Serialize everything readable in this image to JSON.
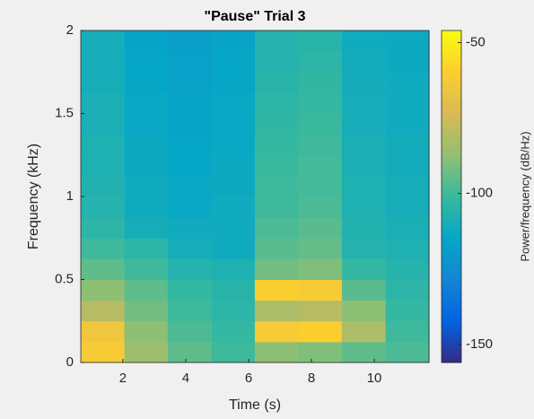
{
  "chart_data": {
    "type": "heatmap",
    "title": "\"Pause\" Trial 3",
    "x_label": "Time (s)",
    "y_label": "Frequency (kHz)",
    "colorbar_label": "Power/frequency (dB/Hz)",
    "x": [
      1.35,
      2.74,
      4.12,
      5.51,
      6.89,
      8.28,
      9.66,
      11.05
    ],
    "y": [
      0.0625,
      0.1875,
      0.3125,
      0.4375,
      0.5625,
      0.6875,
      0.8125,
      0.9375,
      1.0625,
      1.1875,
      1.3125,
      1.4375,
      1.5625,
      1.6875,
      1.8125,
      1.9375
    ],
    "z": [
      [
        -62,
        -85,
        -95,
        -100,
        -88,
        -90,
        -95,
        -98
      ],
      [
        -65,
        -88,
        -98,
        -102,
        -62,
        -60,
        -82,
        -100
      ],
      [
        -80,
        -92,
        -100,
        -104,
        -82,
        -80,
        -88,
        -102
      ],
      [
        -88,
        -95,
        -102,
        -105,
        -60,
        -62,
        -96,
        -104
      ],
      [
        -95,
        -100,
        -106,
        -108,
        -92,
        -90,
        -102,
        -106
      ],
      [
        -100,
        -104,
        -110,
        -112,
        -96,
        -94,
        -106,
        -108
      ],
      [
        -104,
        -110,
        -112,
        -112,
        -98,
        -96,
        -107,
        -109
      ],
      [
        -106,
        -112,
        -114,
        -112,
        -100,
        -98,
        -108,
        -110
      ],
      [
        -107,
        -112,
        -114,
        -113,
        -100,
        -99,
        -108,
        -110
      ],
      [
        -108,
        -113,
        -115,
        -113,
        -101,
        -99,
        -109,
        -111
      ],
      [
        -108,
        -113,
        -115,
        -114,
        -102,
        -100,
        -109,
        -111
      ],
      [
        -109,
        -114,
        -116,
        -114,
        -103,
        -101,
        -110,
        -112
      ],
      [
        -109,
        -114,
        -116,
        -114,
        -104,
        -102,
        -110,
        -112
      ],
      [
        -110,
        -115,
        -117,
        -115,
        -105,
        -103,
        -111,
        -112
      ],
      [
        -110,
        -115,
        -117,
        -115,
        -106,
        -104,
        -111,
        -113
      ],
      [
        -110,
        -116,
        -118,
        -116,
        -106,
        -105,
        -112,
        -113
      ]
    ],
    "xlim": [
      0.66,
      11.74
    ],
    "ylim": [
      0,
      2
    ],
    "xticks": [
      2,
      4,
      6,
      8,
      10
    ],
    "yticks": [
      0,
      0.5,
      1,
      1.5,
      2
    ],
    "clim": [
      -156,
      -46
    ],
    "cticks": [
      -150,
      -100,
      -50
    ],
    "colormap": [
      "#352a87",
      "#0363e1",
      "#1485d4",
      "#06a7c6",
      "#38b99e",
      "#92bf73",
      "#d9ba56",
      "#fcce2e",
      "#f9fb0e"
    ]
  }
}
